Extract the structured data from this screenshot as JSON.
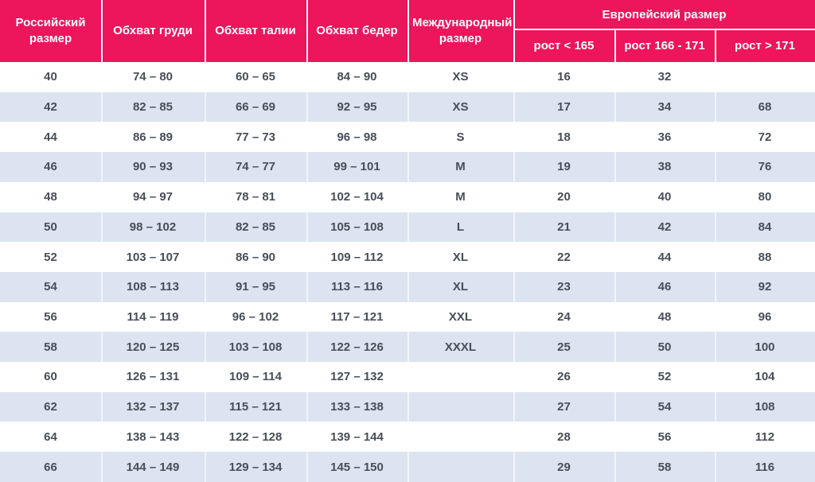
{
  "chart_data": {
    "type": "table",
    "header": {
      "russian_size": "Российский размер",
      "chest": "Обхват груди",
      "waist": "Обхват талии",
      "hips": "Обхват бедер",
      "international_size": "Международный размер",
      "european_group": "Европейский размер",
      "height_cols": [
        "рост < 165",
        "рост 166 - 171",
        "рост > 171"
      ]
    },
    "rows": [
      [
        "40",
        "74 – 80",
        "60 – 65",
        "84 – 90",
        "XS",
        "16",
        "32",
        ""
      ],
      [
        "42",
        "82 – 85",
        "66 – 69",
        "92 – 95",
        "XS",
        "17",
        "34",
        "68"
      ],
      [
        "44",
        "86 – 89",
        "77 – 73",
        "96 – 98",
        "S",
        "18",
        "36",
        "72"
      ],
      [
        "46",
        "90 – 93",
        "74 – 77",
        "99 – 101",
        "M",
        "19",
        "38",
        "76"
      ],
      [
        "48",
        "94 – 97",
        "78 – 81",
        "102 – 104",
        "M",
        "20",
        "40",
        "80"
      ],
      [
        "50",
        "98 – 102",
        "82 – 85",
        "105 – 108",
        "L",
        "21",
        "42",
        "84"
      ],
      [
        "52",
        "103 – 107",
        "86 – 90",
        "109 – 112",
        "XL",
        "22",
        "44",
        "88"
      ],
      [
        "54",
        "108 – 113",
        "91 – 95",
        "113 – 116",
        "XL",
        "23",
        "46",
        "92"
      ],
      [
        "56",
        "114 – 119",
        "96 – 102",
        "117 – 121",
        "XXL",
        "24",
        "48",
        "96"
      ],
      [
        "58",
        "120 – 125",
        "103 – 108",
        "122 – 126",
        "XXXL",
        "25",
        "50",
        "100"
      ],
      [
        "60",
        "126 – 131",
        "109 – 114",
        "127 – 132",
        "",
        "26",
        "52",
        "104"
      ],
      [
        "62",
        "132 – 137",
        "115 – 121",
        "133 – 138",
        "",
        "27",
        "54",
        "108"
      ],
      [
        "64",
        "138 – 143",
        "122 – 128",
        "139 – 144",
        "",
        "28",
        "56",
        "112"
      ],
      [
        "66",
        "144 – 149",
        "129 – 134",
        "145 – 150",
        "",
        "29",
        "58",
        "116"
      ]
    ]
  },
  "colors": {
    "header_bg": "#ED155B",
    "header_text": "#FFFFFF",
    "stripe_bg": "#DCE4F1",
    "body_text": "#474E58"
  }
}
